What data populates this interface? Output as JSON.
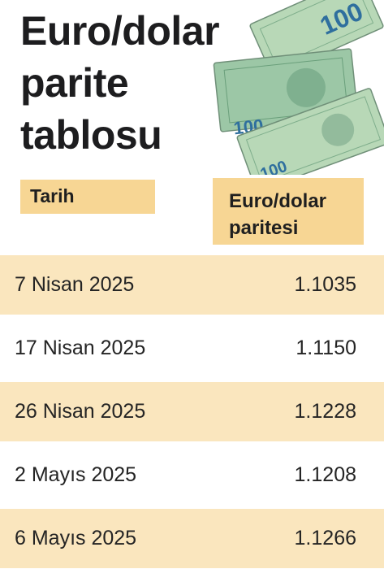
{
  "title": {
    "line1": "Euro/dolar",
    "line2": "parite",
    "line3": "tablosu"
  },
  "illustration": {
    "icon": "banknotes-icon",
    "note_label_top": "100",
    "note_label_left": "100",
    "note_label_bottom": "100"
  },
  "columns": {
    "date": "Tarih",
    "rate_line1": "Euro/dolar",
    "rate_line2": "paritesi"
  },
  "chart_data": {
    "type": "table",
    "title": "Euro/dolar parite tablosu",
    "columns": [
      "Tarih",
      "Euro/dolar paritesi"
    ],
    "rows": [
      {
        "date": "7 Nisan 2025",
        "rate": "1.1035"
      },
      {
        "date": "17 Nisan 2025",
        "rate": "1.1150"
      },
      {
        "date": "26 Nisan 2025",
        "rate": "1.1228"
      },
      {
        "date": "2 Mayıs 2025",
        "rate": "1.1208"
      },
      {
        "date": "6 Mayıs 2025",
        "rate": "1.1266"
      }
    ]
  },
  "colors": {
    "header_fill": "#f7d694",
    "row_shade": "#fae6be",
    "text": "#1f1f1f"
  }
}
